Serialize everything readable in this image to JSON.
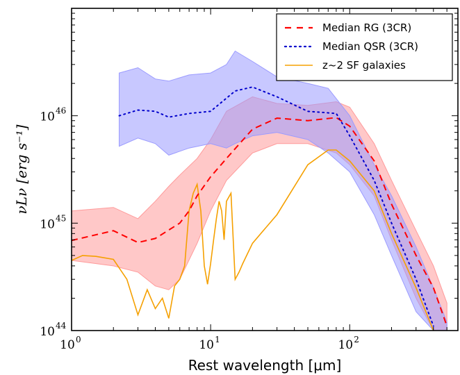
{
  "chart_data": {
    "type": "line",
    "title": "",
    "xlabel": "Rest wavelength [μm]",
    "ylabel": "νLν [erg s⁻¹]",
    "x_scale": "log",
    "y_scale": "log",
    "xlim": [
      1,
      600
    ],
    "ylim": [
      1e+44,
      1e+47
    ],
    "x_ticks": [
      {
        "value": 1,
        "base": "10",
        "exp": "0"
      },
      {
        "value": 10,
        "base": "10",
        "exp": "1"
      },
      {
        "value": 100,
        "base": "10",
        "exp": "2"
      }
    ],
    "y_ticks": [
      {
        "value": 1e+44,
        "base": "10",
        "exp": "44"
      },
      {
        "value": 1e+45,
        "base": "10",
        "exp": "45"
      },
      {
        "value": 1e+46,
        "base": "10",
        "exp": "46"
      }
    ],
    "grid": false,
    "legend_position": "top-right",
    "series": [
      {
        "name": "Median RG (3CR)",
        "color": "#ff0000",
        "style": "dashed",
        "x": [
          1,
          2,
          3,
          4,
          6,
          7,
          8,
          10,
          13,
          20,
          30,
          50,
          80,
          100,
          150,
          200,
          300,
          400,
          500
        ],
        "y": [
          6.9e+44,
          8.5e+44,
          6.6e+44,
          7.2e+44,
          1e+45,
          1.3e+45,
          1.8e+45,
          2.7e+45,
          4e+45,
          7.5e+45,
          9.5e+45,
          9e+45,
          9.6e+45,
          8e+45,
          3.8e+45,
          1.5e+45,
          5e+44,
          2.5e+44,
          1.1e+44
        ]
      },
      {
        "name": "Median QSR (3CR)",
        "color": "#0000cc",
        "style": "dotted",
        "x": [
          2.2,
          3,
          4,
          5,
          7,
          10,
          15,
          20,
          30,
          50,
          80,
          100,
          150,
          200,
          300,
          400
        ],
        "y": [
          1e+46,
          1.13e+46,
          1.1e+46,
          9.7e+45,
          1.05e+46,
          1.1e+46,
          1.7e+46,
          1.85e+46,
          1.5e+46,
          1.1e+46,
          1.05e+46,
          6.5e+45,
          2.5e+45,
          1e+45,
          3e+44,
          1.1e+44
        ]
      },
      {
        "name": "z~2 SF galaxies",
        "color": "#f5a000",
        "style": "solid",
        "x": [
          1,
          1.2,
          1.5,
          2,
          2.5,
          3,
          3.5,
          4,
          4.5,
          5,
          5.5,
          6,
          6.5,
          7,
          7.5,
          8,
          8.5,
          9,
          9.5,
          10,
          10.5,
          11,
          11.5,
          12,
          12.5,
          13,
          14,
          15,
          16,
          17,
          20,
          30,
          50,
          70,
          80,
          100,
          150,
          200,
          300,
          400
        ],
        "y": [
          4.5e+44,
          5e+44,
          4.9e+44,
          4.6e+44,
          3e+44,
          1.4e+44,
          2.4e+44,
          1.6e+44,
          2e+44,
          1.3e+44,
          2.6e+44,
          3e+44,
          4e+44,
          1.3e+45,
          1.9e+45,
          2.3e+45,
          1.3e+45,
          4e+44,
          2.7e+44,
          4.2e+44,
          7e+44,
          1.1e+45,
          1.6e+45,
          1.3e+45,
          7e+44,
          1.6e+45,
          1.9e+45,
          3e+44,
          3.5e+44,
          4.2e+44,
          6.5e+44,
          1.2e+45,
          3.5e+45,
          4.8e+45,
          4.8e+45,
          3.8e+45,
          2e+45,
          8e+44,
          2.5e+44,
          1e+44
        ]
      }
    ],
    "bands": [
      {
        "series": "Median RG (3CR)",
        "color": "#ff9a9a",
        "x": [
          1,
          2,
          3,
          4,
          5,
          6,
          8,
          10,
          13,
          20,
          30,
          50,
          80,
          100,
          150,
          200,
          300,
          400,
          500
        ],
        "upper": [
          1.3e+45,
          1.4e+45,
          1.1e+45,
          1.6e+45,
          2.2e+45,
          2.8e+45,
          4e+45,
          6e+45,
          1.1e+46,
          1.5e+46,
          1.3e+46,
          1.25e+46,
          1.35e+46,
          1.2e+46,
          5.5e+45,
          2.5e+45,
          8.5e+44,
          4e+44,
          1.8e+44
        ],
        "lower": [
          4.5e+44,
          4e+44,
          3.5e+44,
          2.6e+44,
          2.4e+44,
          3e+44,
          6.5e+44,
          1.3e+45,
          2.5e+45,
          4.5e+45,
          5.5e+45,
          5.5e+45,
          4.5e+45,
          3.5e+45,
          1.8e+45,
          7e+44,
          2e+44,
          1e+44,
          1e+44
        ]
      },
      {
        "series": "Median QSR (3CR)",
        "color": "#9b9bff",
        "x": [
          2.2,
          3,
          4,
          5,
          7,
          10,
          13,
          15,
          20,
          30,
          50,
          70,
          100,
          150,
          200,
          300,
          400,
          500
        ],
        "upper": [
          2.5e+46,
          2.8e+46,
          2.2e+46,
          2.1e+46,
          2.4e+46,
          2.5e+46,
          3e+46,
          4e+46,
          3.2e+46,
          2.3e+46,
          2e+46,
          1.8e+46,
          1e+46,
          3.5e+45,
          1.8e+45,
          6e+44,
          2.5e+44,
          1.2e+44
        ],
        "lower": [
          5.2e+45,
          6.2e+45,
          5.5e+45,
          4.3e+45,
          5e+45,
          5.5e+45,
          5e+45,
          5.5e+45,
          6.5e+45,
          7e+45,
          6e+45,
          4.5e+45,
          3e+45,
          1.2e+45,
          5e+44,
          1.5e+44,
          1e+44,
          1e+44
        ]
      }
    ]
  }
}
